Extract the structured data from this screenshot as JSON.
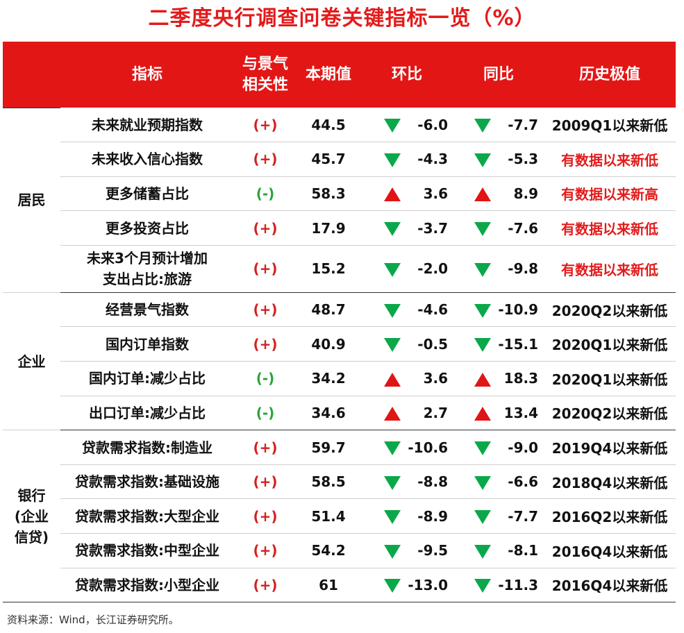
{
  "title": "二季度央行调查问卷关键指标一览（%）",
  "headers": {
    "indicator": "指标",
    "correlation_line1": "与景气",
    "correlation_line2": "相关性",
    "current": "本期值",
    "qoq": "环比",
    "yoy": "同比",
    "record": "历史极值"
  },
  "groups": {
    "residents": "居民",
    "enterprise": "企业",
    "bank_line1": "银行",
    "bank_line2": "(企业",
    "bank_line3": "信贷)"
  },
  "rows": [
    {
      "name": "未来就业预期指数",
      "corr": "(+)",
      "current": "44.5",
      "qoq_dir": "down",
      "qoq": "-6.0",
      "yoy_dir": "down",
      "yoy": "-7.7",
      "record": "2009Q1以来新低",
      "record_color": "black"
    },
    {
      "name": "未来收入信心指数",
      "corr": "(+)",
      "current": "45.7",
      "qoq_dir": "down",
      "qoq": "-4.3",
      "yoy_dir": "down",
      "yoy": "-5.3",
      "record": "有数据以来新低",
      "record_color": "red"
    },
    {
      "name": "更多储蓄占比",
      "corr": "(-)",
      "current": "58.3",
      "qoq_dir": "up",
      "qoq": "3.6",
      "yoy_dir": "up",
      "yoy": "8.9",
      "record": "有数据以来新高",
      "record_color": "red"
    },
    {
      "name": "更多投资占比",
      "corr": "(+)",
      "current": "17.9",
      "qoq_dir": "down",
      "qoq": "-3.7",
      "yoy_dir": "down",
      "yoy": "-7.6",
      "record": "有数据以来新低",
      "record_color": "red"
    },
    {
      "name_line1": "未来3个月预计增加",
      "name_line2": "支出占比:旅游",
      "corr": "(+)",
      "current": "15.2",
      "qoq_dir": "down",
      "qoq": "-2.0",
      "yoy_dir": "down",
      "yoy": "-9.8",
      "record": "有数据以来新低",
      "record_color": "red"
    },
    {
      "name": "经营景气指数",
      "corr": "(+)",
      "current": "48.7",
      "qoq_dir": "down",
      "qoq": "-4.6",
      "yoy_dir": "down",
      "yoy": "-10.9",
      "record": "2020Q2以来新低",
      "record_color": "black"
    },
    {
      "name": "国内订单指数",
      "corr": "(+)",
      "current": "40.9",
      "qoq_dir": "down",
      "qoq": "-0.5",
      "yoy_dir": "down",
      "yoy": "-15.1",
      "record": "2020Q1以来新低",
      "record_color": "black"
    },
    {
      "name": "国内订单:减少占比",
      "corr": "(-)",
      "current": "34.2",
      "qoq_dir": "up",
      "qoq": "3.6",
      "yoy_dir": "up",
      "yoy": "18.3",
      "record": "2020Q1以来新低",
      "record_color": "black"
    },
    {
      "name": "出口订单:减少占比",
      "corr": "(-)",
      "current": "34.6",
      "qoq_dir": "up",
      "qoq": "2.7",
      "yoy_dir": "up",
      "yoy": "13.4",
      "record": "2020Q2以来新低",
      "record_color": "black"
    },
    {
      "name": "贷款需求指数:制造业",
      "corr": "(+)",
      "current": "59.7",
      "qoq_dir": "down",
      "qoq": "-10.6",
      "yoy_dir": "down",
      "yoy": "-9.0",
      "record": "2019Q4以来新低",
      "record_color": "black"
    },
    {
      "name": "贷款需求指数:基础设施",
      "corr": "(+)",
      "current": "58.5",
      "qoq_dir": "down",
      "qoq": "-8.8",
      "yoy_dir": "down",
      "yoy": "-6.6",
      "record": "2018Q4以来新低",
      "record_color": "black"
    },
    {
      "name": "贷款需求指数:大型企业",
      "corr": "(+)",
      "current": "51.4",
      "qoq_dir": "down",
      "qoq": "-8.9",
      "yoy_dir": "down",
      "yoy": "-7.7",
      "record": "2016Q2以来新低",
      "record_color": "black"
    },
    {
      "name": "贷款需求指数:中型企业",
      "corr": "(+)",
      "current": "54.2",
      "qoq_dir": "down",
      "qoq": "-9.5",
      "yoy_dir": "down",
      "yoy": "-8.1",
      "record": "2016Q4以来新低",
      "record_color": "black"
    },
    {
      "name": "贷款需求指数:小型企业",
      "corr": "(+)",
      "current": "61",
      "qoq_dir": "down",
      "qoq": "-13.0",
      "yoy_dir": "down",
      "yoy": "-11.3",
      "record": "2016Q4以来新低",
      "record_color": "black"
    }
  ],
  "colors": {
    "header_bg": "#e31616",
    "title": "#e31b1b",
    "up_arrow": "#e01515",
    "down_arrow": "#0aa84a",
    "positive_corr": "#d42020",
    "negative_corr": "#2aa33a"
  },
  "icons": {
    "up": "red-triangle-up-icon",
    "down": "green-triangle-down-icon"
  },
  "source": "资料来源：Wind，长江证券研究所。"
}
